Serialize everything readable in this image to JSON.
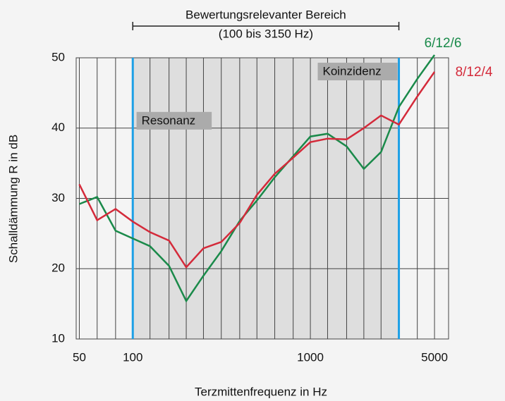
{
  "chart_data": {
    "type": "line",
    "x_label": "Terzmittenfrequenz in Hz",
    "y_label": "Schalldämmung R in dB",
    "xlog": true,
    "xlim": [
      48,
      6000
    ],
    "ylim": [
      10,
      50
    ],
    "xticks": [
      50,
      100,
      1000,
      5000
    ],
    "yticks": [
      10,
      20,
      30,
      40,
      50
    ],
    "xgrid": [
      50,
      63,
      80,
      100,
      125,
      160,
      200,
      250,
      315,
      400,
      500,
      630,
      800,
      1000,
      1250,
      1600,
      2000,
      2500,
      3150,
      4000,
      5000
    ],
    "x": [
      50,
      63,
      80,
      100,
      125,
      160,
      200,
      250,
      315,
      400,
      500,
      630,
      800,
      1000,
      1250,
      1600,
      2000,
      2500,
      3150,
      4000,
      5000
    ],
    "series": [
      {
        "name": "6/12/6",
        "color": "#1a8a4a",
        "values": [
          29.2,
          30.2,
          25.4,
          24.3,
          23.2,
          20.4,
          15.4,
          19,
          22.5,
          26.8,
          29.7,
          33,
          36,
          38.8,
          39.2,
          37.4,
          34.2,
          36.6,
          43,
          47,
          50.4
        ]
      },
      {
        "name": "8/12/4",
        "color": "#d42a3a",
        "values": [
          32,
          26.9,
          28.5,
          26.7,
          25.2,
          24,
          20.2,
          22.9,
          23.8,
          26.5,
          30.5,
          33.5,
          35.8,
          38,
          38.5,
          38.4,
          40,
          41.8,
          40.5,
          44.5,
          48
        ]
      }
    ],
    "range": {
      "from": 100,
      "to": 3150,
      "title": "Bewertungsrelevanter Bereich",
      "subtitle": "(100 bis 3150 Hz)",
      "color": "#1ea0e6"
    },
    "annotations": [
      {
        "text": "Resonanz",
        "x": 105,
        "y": 42.3
      },
      {
        "text": "Koinzidenz",
        "x": 1100,
        "y": 49.3
      }
    ]
  }
}
